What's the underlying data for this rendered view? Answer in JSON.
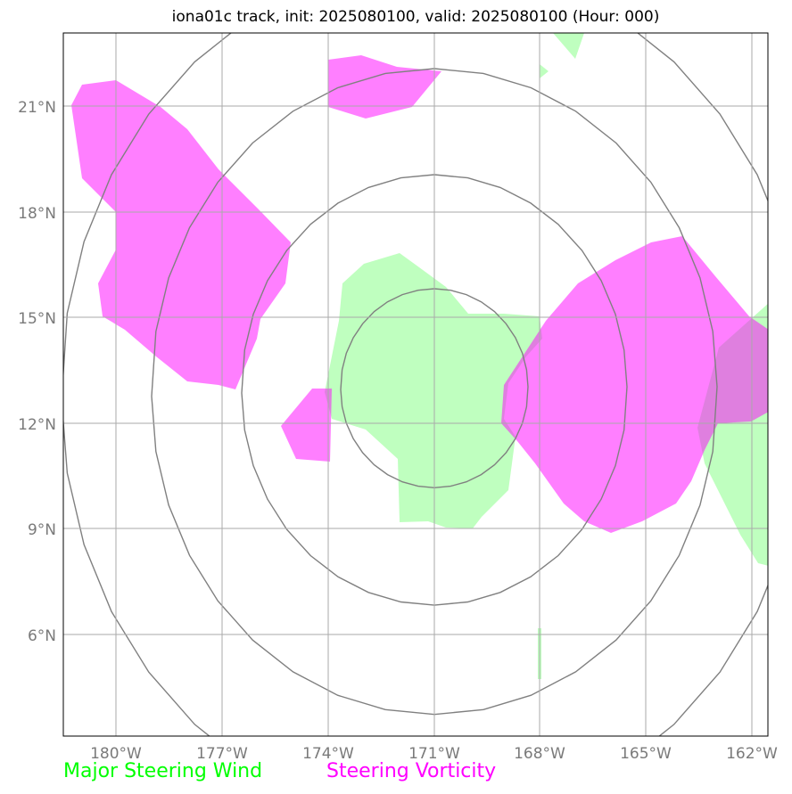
{
  "title": "iona01c track, init: 2025080100, valid: 2025080100 (Hour: 000)",
  "colors": {
    "steering_wind": "#00ff00",
    "steering_vorticity": "#ff00ff",
    "overlap": "#9a6fa5",
    "rings": "#808080",
    "grid": "#aaaaaa"
  },
  "lon_ticks": [
    "180°W",
    "177°W",
    "174°W",
    "171°W",
    "168°W",
    "165°W",
    "162°W"
  ],
  "lat_ticks": [
    "21°N",
    "18°N",
    "15°N",
    "12°N",
    "9°N",
    "6°N"
  ],
  "legend": {
    "wind_label": "Major Steering Wind",
    "vorticity_label": "Steering Vorticity"
  }
}
